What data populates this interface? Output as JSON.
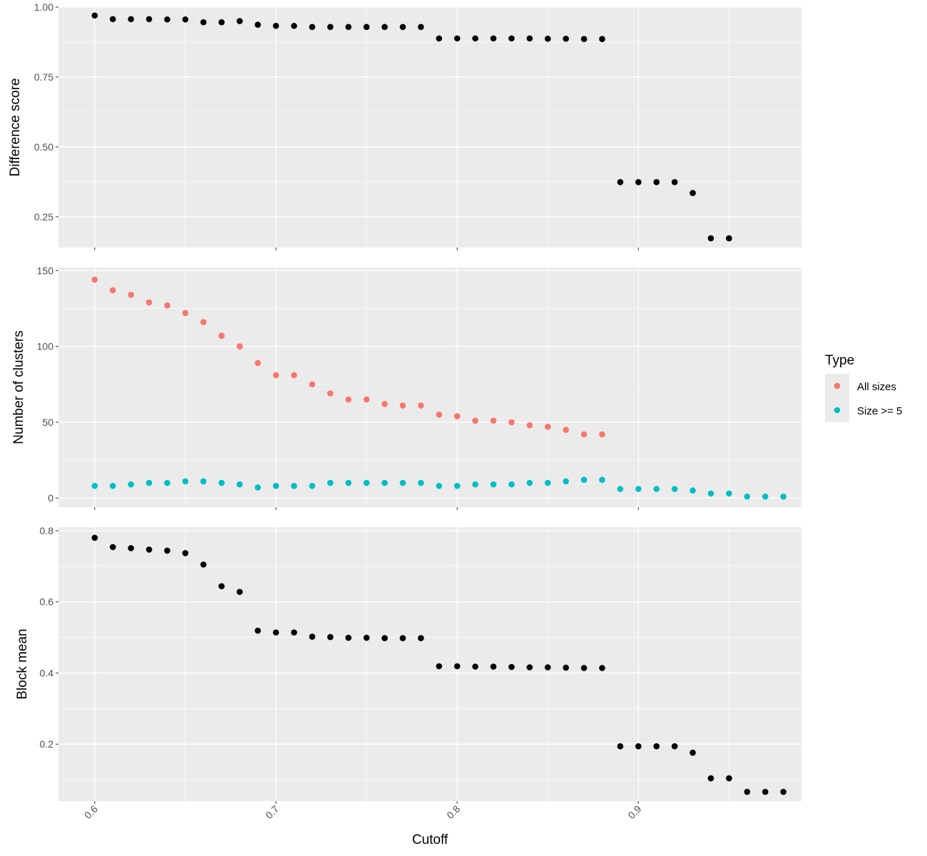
{
  "chart_data": {
    "type": "scatter",
    "xlabel": "Cutoff",
    "xlim": [
      0.58,
      0.99
    ],
    "x_ticks": [
      {
        "value": 0.6,
        "label": "0.6"
      },
      {
        "value": 0.7,
        "label": "0.7"
      },
      {
        "value": 0.8,
        "label": "0.8"
      },
      {
        "value": 0.9,
        "label": "0.9"
      }
    ],
    "x_minor_ticks": [
      0.65,
      0.75,
      0.85,
      0.95
    ],
    "legend": {
      "title": "Type",
      "placement": "right",
      "entries": [
        {
          "label": "All sizes",
          "color": "#F8766D"
        },
        {
          "label": "Size >= 5",
          "color": "#00BFC4"
        }
      ]
    },
    "panels": [
      {
        "id": "difference",
        "ylabel": "Difference score",
        "ylim": [
          0.14,
          1.0
        ],
        "y_ticks": [
          {
            "value": 0.25,
            "label": "0.25"
          },
          {
            "value": 0.5,
            "label": "0.50"
          },
          {
            "value": 0.75,
            "label": "0.75"
          },
          {
            "value": 1.0,
            "label": "1.00"
          }
        ],
        "y_minor_ticks": [
          0.375,
          0.625,
          0.875
        ],
        "series": [
          {
            "color": "#000000",
            "x": [
              0.6,
              0.61,
              0.62,
              0.63,
              0.64,
              0.65,
              0.66,
              0.67,
              0.68,
              0.69,
              0.7,
              0.71,
              0.72,
              0.73,
              0.74,
              0.75,
              0.76,
              0.77,
              0.78,
              0.79,
              0.8,
              0.81,
              0.82,
              0.83,
              0.84,
              0.85,
              0.86,
              0.87,
              0.88,
              0.89,
              0.9,
              0.91,
              0.92,
              0.93,
              0.94,
              0.95
            ],
            "y": [
              0.97,
              0.957,
              0.957,
              0.957,
              0.956,
              0.956,
              0.946,
              0.946,
              0.95,
              0.937,
              0.933,
              0.933,
              0.929,
              0.929,
              0.929,
              0.929,
              0.929,
              0.929,
              0.929,
              0.888,
              0.888,
              0.888,
              0.888,
              0.888,
              0.888,
              0.887,
              0.887,
              0.886,
              0.886,
              0.374,
              0.374,
              0.374,
              0.374,
              0.335,
              0.173,
              0.173
            ]
          }
        ]
      },
      {
        "id": "clusters",
        "ylabel": "Number of clusters",
        "ylim": [
          -6,
          152
        ],
        "y_ticks": [
          {
            "value": 0,
            "label": "0"
          },
          {
            "value": 50,
            "label": "50"
          },
          {
            "value": 100,
            "label": "100"
          },
          {
            "value": 150,
            "label": "150"
          }
        ],
        "y_minor_ticks": [
          25,
          75,
          125
        ],
        "series": [
          {
            "name": "All sizes",
            "color": "#F8766D",
            "x": [
              0.6,
              0.61,
              0.62,
              0.63,
              0.64,
              0.65,
              0.66,
              0.67,
              0.68,
              0.69,
              0.7,
              0.71,
              0.72,
              0.73,
              0.74,
              0.75,
              0.76,
              0.77,
              0.78,
              0.79,
              0.8,
              0.81,
              0.82,
              0.83,
              0.84,
              0.85,
              0.86,
              0.87,
              0.88
            ],
            "y": [
              144,
              137,
              134,
              129,
              127,
              122,
              116,
              107,
              100,
              89,
              81,
              81,
              75,
              69,
              65,
              65,
              62,
              61,
              61,
              55,
              54,
              51,
              51,
              50,
              48,
              47,
              45,
              42,
              42
            ]
          },
          {
            "name": "Size >= 5",
            "color": "#00BFC4",
            "x": [
              0.6,
              0.61,
              0.62,
              0.63,
              0.64,
              0.65,
              0.66,
              0.67,
              0.68,
              0.69,
              0.7,
              0.71,
              0.72,
              0.73,
              0.74,
              0.75,
              0.76,
              0.77,
              0.78,
              0.79,
              0.8,
              0.81,
              0.82,
              0.83,
              0.84,
              0.85,
              0.86,
              0.87,
              0.88,
              0.89,
              0.9,
              0.91,
              0.92,
              0.93,
              0.94,
              0.95,
              0.96,
              0.97,
              0.98
            ],
            "y": [
              8,
              8,
              9,
              10,
              10,
              11,
              11,
              10,
              9,
              7,
              8,
              8,
              8,
              10,
              10,
              10,
              10,
              10,
              10,
              8,
              8,
              9,
              9,
              9,
              10,
              10,
              11,
              12,
              12,
              6,
              6,
              6,
              6,
              5,
              3,
              3,
              1,
              1,
              1
            ]
          }
        ]
      },
      {
        "id": "block",
        "ylabel": "Block mean",
        "ylim": [
          0.04,
          0.81
        ],
        "y_ticks": [
          {
            "value": 0.2,
            "label": "0.2"
          },
          {
            "value": 0.4,
            "label": "0.4"
          },
          {
            "value": 0.6,
            "label": "0.6"
          },
          {
            "value": 0.8,
            "label": "0.8"
          }
        ],
        "y_minor_ticks": [
          0.1,
          0.3,
          0.5,
          0.7
        ],
        "series": [
          {
            "color": "#000000",
            "x": [
              0.6,
              0.61,
              0.62,
              0.63,
              0.64,
              0.65,
              0.66,
              0.67,
              0.68,
              0.69,
              0.7,
              0.71,
              0.72,
              0.73,
              0.74,
              0.75,
              0.76,
              0.77,
              0.78,
              0.79,
              0.8,
              0.81,
              0.82,
              0.83,
              0.84,
              0.85,
              0.86,
              0.87,
              0.88,
              0.89,
              0.9,
              0.91,
              0.92,
              0.93,
              0.94,
              0.95,
              0.96,
              0.97,
              0.98
            ],
            "y": [
              0.78,
              0.754,
              0.751,
              0.747,
              0.744,
              0.737,
              0.705,
              0.644,
              0.628,
              0.519,
              0.514,
              0.514,
              0.502,
              0.501,
              0.499,
              0.499,
              0.498,
              0.498,
              0.498,
              0.419,
              0.419,
              0.418,
              0.418,
              0.417,
              0.416,
              0.416,
              0.415,
              0.414,
              0.414,
              0.194,
              0.194,
              0.194,
              0.194,
              0.176,
              0.104,
              0.104,
              0.066,
              0.066,
              0.066
            ]
          }
        ]
      }
    ]
  }
}
